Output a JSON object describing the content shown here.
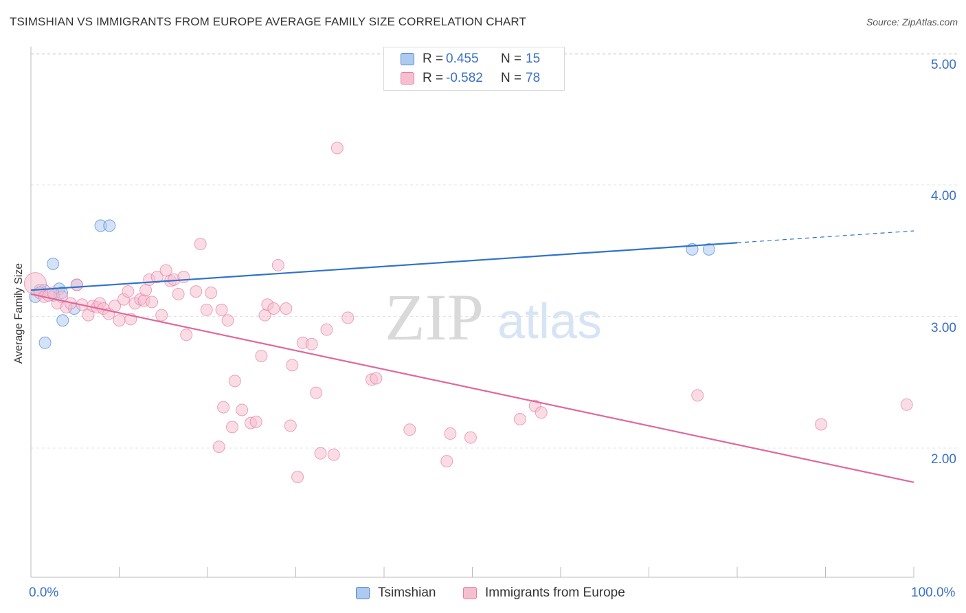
{
  "title": "TSIMSHIAN VS IMMIGRANTS FROM EUROPE AVERAGE FAMILY SIZE CORRELATION CHART",
  "source": "Source: ZipAtlas.com",
  "watermark": {
    "zip": "ZIP",
    "atlas": "atlas"
  },
  "legend_top": [
    {
      "r_label": "R =",
      "r_value": "0.455",
      "n_label": "N =",
      "n_value": "15",
      "color": "#aecbef"
    },
    {
      "r_label": "R =",
      "r_value": "-0.582",
      "n_label": "N =",
      "n_value": "78",
      "color": "#f6bfd0"
    }
  ],
  "legend_bottom": [
    {
      "label": "Tsimshian",
      "color": "#aecbef"
    },
    {
      "label": "Immigrants from Europe",
      "color": "#f6bfd0"
    }
  ],
  "chart_data": {
    "type": "scatter",
    "xlabel": "",
    "ylabel": "Average Family Size",
    "xlim": [
      0,
      100
    ],
    "ylim": [
      1.1,
      5.1
    ],
    "x_tick_labels": [
      "0.0%",
      "100.0%"
    ],
    "y_ticks": [
      2,
      3,
      4,
      5
    ],
    "y_tick_labels": [
      "2.00",
      "3.00",
      "4.00",
      "5.00"
    ],
    "grid": true,
    "series": [
      {
        "name": "Tsimshian",
        "color": "#4a86d8",
        "fill": "#aecbef",
        "trend": {
          "x": [
            0,
            80
          ],
          "y": [
            3.2,
            3.56
          ],
          "dashed_to": [
            100,
            3.65
          ],
          "color": "#2f72cc"
        },
        "points": [
          [
            0.5,
            3.15
          ],
          [
            1.5,
            3.2
          ],
          [
            2.6,
            3.16
          ],
          [
            2.5,
            3.4
          ],
          [
            3.2,
            3.21
          ],
          [
            3.5,
            3.18
          ],
          [
            1.6,
            2.8
          ],
          [
            3.6,
            2.97
          ],
          [
            4.9,
            3.06
          ],
          [
            5.2,
            3.24
          ],
          [
            7.9,
            3.69
          ],
          [
            8.9,
            3.69
          ],
          [
            1.0,
            3.2
          ],
          [
            74.9,
            3.51
          ],
          [
            76.8,
            3.51
          ]
        ]
      },
      {
        "name": "Immigrants from Europe",
        "color": "#e77ea2",
        "fill": "#f6bfd0",
        "trend": {
          "x": [
            0,
            100
          ],
          "y": [
            3.17,
            1.74
          ],
          "color": "#e0689a"
        },
        "points": [
          [
            0.5,
            3.25
          ],
          [
            1.0,
            3.18
          ],
          [
            1.5,
            3.15
          ],
          [
            2.0,
            3.16
          ],
          [
            2.5,
            3.18
          ],
          [
            3.0,
            3.1
          ],
          [
            3.5,
            3.15
          ],
          [
            4.0,
            3.07
          ],
          [
            4.5,
            3.1
          ],
          [
            5.2,
            3.24
          ],
          [
            5.8,
            3.09
          ],
          [
            6.5,
            3.01
          ],
          [
            7.0,
            3.08
          ],
          [
            7.5,
            3.07
          ],
          [
            7.8,
            3.1
          ],
          [
            8.2,
            3.06
          ],
          [
            8.8,
            3.02
          ],
          [
            9.5,
            3.08
          ],
          [
            10.0,
            2.97
          ],
          [
            10.5,
            3.13
          ],
          [
            11.0,
            3.19
          ],
          [
            11.3,
            2.98
          ],
          [
            11.8,
            3.1
          ],
          [
            12.4,
            3.13
          ],
          [
            12.8,
            3.12
          ],
          [
            13.0,
            3.2
          ],
          [
            13.4,
            3.28
          ],
          [
            13.7,
            3.11
          ],
          [
            14.3,
            3.3
          ],
          [
            14.8,
            3.01
          ],
          [
            15.3,
            3.35
          ],
          [
            15.8,
            3.27
          ],
          [
            16.2,
            3.28
          ],
          [
            16.7,
            3.17
          ],
          [
            17.3,
            3.3
          ],
          [
            17.6,
            2.86
          ],
          [
            18.7,
            3.19
          ],
          [
            19.2,
            3.55
          ],
          [
            19.9,
            3.05
          ],
          [
            20.4,
            3.18
          ],
          [
            21.3,
            2.01
          ],
          [
            21.6,
            3.05
          ],
          [
            21.8,
            2.31
          ],
          [
            22.3,
            2.97
          ],
          [
            22.8,
            2.16
          ],
          [
            23.1,
            2.51
          ],
          [
            23.9,
            2.29
          ],
          [
            24.9,
            2.19
          ],
          [
            25.5,
            2.2
          ],
          [
            26.1,
            2.7
          ],
          [
            26.5,
            3.01
          ],
          [
            26.8,
            3.09
          ],
          [
            27.5,
            3.06
          ],
          [
            28.0,
            3.39
          ],
          [
            28.9,
            3.06
          ],
          [
            29.4,
            2.17
          ],
          [
            29.6,
            2.63
          ],
          [
            30.2,
            1.78
          ],
          [
            30.8,
            2.8
          ],
          [
            31.8,
            2.79
          ],
          [
            32.3,
            2.42
          ],
          [
            32.8,
            1.96
          ],
          [
            33.5,
            2.9
          ],
          [
            34.3,
            1.95
          ],
          [
            34.7,
            4.28
          ],
          [
            35.9,
            2.99
          ],
          [
            38.6,
            2.52
          ],
          [
            39.1,
            2.53
          ],
          [
            42.9,
            2.14
          ],
          [
            47.1,
            1.9
          ],
          [
            47.5,
            2.11
          ],
          [
            49.8,
            2.08
          ],
          [
            55.4,
            2.22
          ],
          [
            57.1,
            2.32
          ],
          [
            57.8,
            2.27
          ],
          [
            75.5,
            2.4
          ],
          [
            89.5,
            2.18
          ],
          [
            99.2,
            2.33
          ]
        ]
      }
    ]
  }
}
